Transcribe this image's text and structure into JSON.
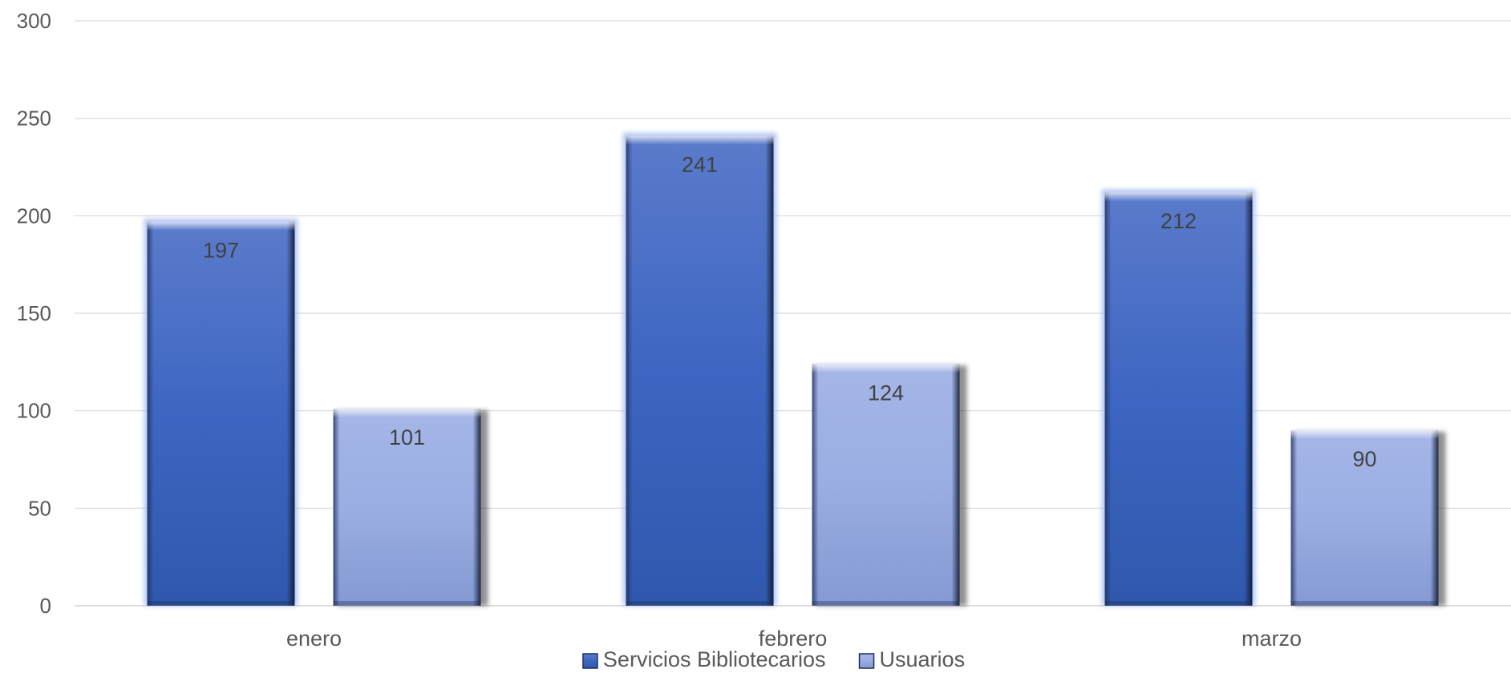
{
  "chart_data": {
    "type": "bar",
    "categories": [
      "enero",
      "febrero",
      "marzo"
    ],
    "series": [
      {
        "name": "Servicios Bibliotecarios",
        "values": [
          197,
          241,
          212
        ],
        "color": "#3f67c0"
      },
      {
        "name": "Usuarios",
        "values": [
          101,
          124,
          90
        ],
        "color": "#95a8e0"
      }
    ],
    "ylim": [
      0,
      300
    ],
    "yticks": [
      0,
      50,
      100,
      150,
      200,
      250,
      300
    ],
    "grid": true,
    "legend_position": "bottom",
    "data_labels": true
  }
}
